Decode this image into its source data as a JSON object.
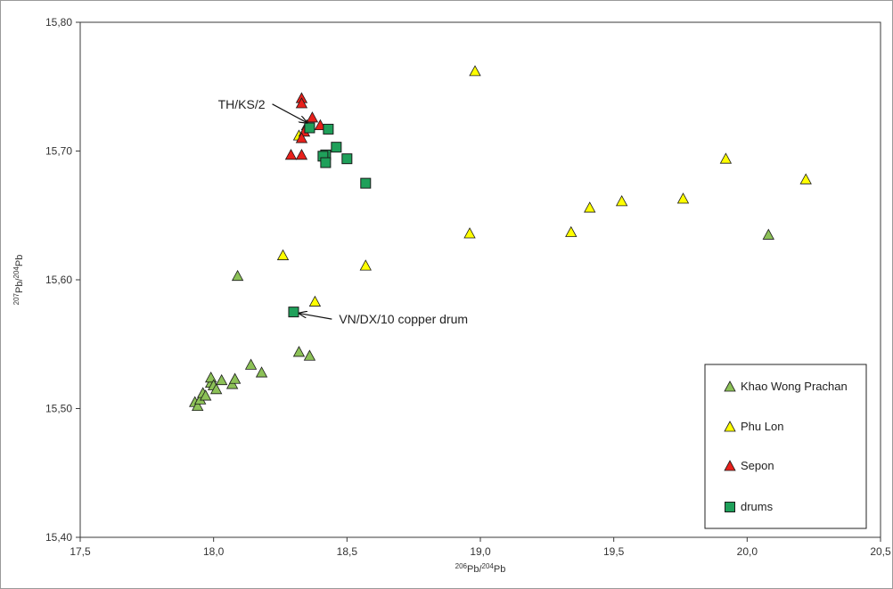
{
  "chart_data": {
    "type": "scatter",
    "title": "",
    "xlabel": {
      "sup": "206",
      "main1": "Pb/",
      "sup2": "204",
      "main2": "Pb"
    },
    "ylabel": {
      "sup": "207",
      "main1": "Pb/",
      "sup2": "204",
      "main2": "Pb"
    },
    "xlim": [
      17.5,
      20.5
    ],
    "ylim": [
      15.4,
      15.8
    ],
    "x_ticks": [
      {
        "value": 17.5,
        "label": "17,5"
      },
      {
        "value": 18.0,
        "label": "18,0"
      },
      {
        "value": 18.5,
        "label": "18,5"
      },
      {
        "value": 19.0,
        "label": "19,0"
      },
      {
        "value": 19.5,
        "label": "19,5"
      },
      {
        "value": 20.0,
        "label": "20,0"
      },
      {
        "value": 20.5,
        "label": "20,5"
      }
    ],
    "y_ticks": [
      {
        "value": 15.4,
        "label": "15,40"
      },
      {
        "value": 15.5,
        "label": "15,50"
      },
      {
        "value": 15.6,
        "label": "15,60"
      },
      {
        "value": 15.7,
        "label": "15,70"
      },
      {
        "value": 15.8,
        "label": "15,80"
      }
    ],
    "grid": false,
    "legend_position": "bottom-right",
    "series": [
      {
        "name": "Khao Wong Prachan",
        "marker": "triangle",
        "color": "#8cc157",
        "points": [
          [
            17.93,
            15.505
          ],
          [
            17.94,
            15.502
          ],
          [
            17.95,
            15.507
          ],
          [
            17.96,
            15.512
          ],
          [
            17.97,
            15.51
          ],
          [
            17.99,
            15.52
          ],
          [
            17.99,
            15.524
          ],
          [
            18.0,
            15.518
          ],
          [
            18.01,
            15.515
          ],
          [
            18.03,
            15.522
          ],
          [
            18.07,
            15.519
          ],
          [
            18.08,
            15.523
          ],
          [
            18.14,
            15.534
          ],
          [
            18.18,
            15.528
          ],
          [
            18.09,
            15.603
          ],
          [
            18.32,
            15.544
          ],
          [
            18.36,
            15.541
          ],
          [
            20.08,
            15.635
          ]
        ]
      },
      {
        "name": "Phu Lon",
        "marker": "triangle",
        "color": "#ffff00",
        "points": [
          [
            18.98,
            15.762
          ],
          [
            18.32,
            15.712
          ],
          [
            18.26,
            15.619
          ],
          [
            18.57,
            15.611
          ],
          [
            18.38,
            15.583
          ],
          [
            18.96,
            15.636
          ],
          [
            19.34,
            15.637
          ],
          [
            19.41,
            15.656
          ],
          [
            19.53,
            15.661
          ],
          [
            19.76,
            15.663
          ],
          [
            19.92,
            15.694
          ],
          [
            20.22,
            15.678
          ]
        ]
      },
      {
        "name": "Sepon",
        "marker": "triangle",
        "color": "#e8201b",
        "points": [
          [
            18.33,
            15.741
          ],
          [
            18.33,
            15.737
          ],
          [
            18.37,
            15.726
          ],
          [
            18.4,
            15.72
          ],
          [
            18.35,
            15.72
          ],
          [
            18.34,
            15.715
          ],
          [
            18.33,
            15.71
          ],
          [
            18.29,
            15.697
          ],
          [
            18.33,
            15.697
          ]
        ]
      },
      {
        "name": "drums",
        "marker": "square",
        "color": "#1fa05a",
        "points": [
          [
            18.36,
            15.718
          ],
          [
            18.43,
            15.717
          ],
          [
            18.46,
            15.703
          ],
          [
            18.42,
            15.697
          ],
          [
            18.41,
            15.696
          ],
          [
            18.42,
            15.691
          ],
          [
            18.5,
            15.694
          ],
          [
            18.57,
            15.675
          ],
          [
            18.3,
            15.575
          ]
        ]
      }
    ],
    "annotations": [
      {
        "text": "TH/KS/2",
        "target": [
          18.35,
          15.722
        ],
        "text_anchor": [
          18.2,
          15.733
        ]
      },
      {
        "text": "VN/DX/10 copper drum",
        "target": [
          18.32,
          15.574
        ],
        "text_anchor": [
          18.47,
          15.566
        ]
      }
    ]
  }
}
